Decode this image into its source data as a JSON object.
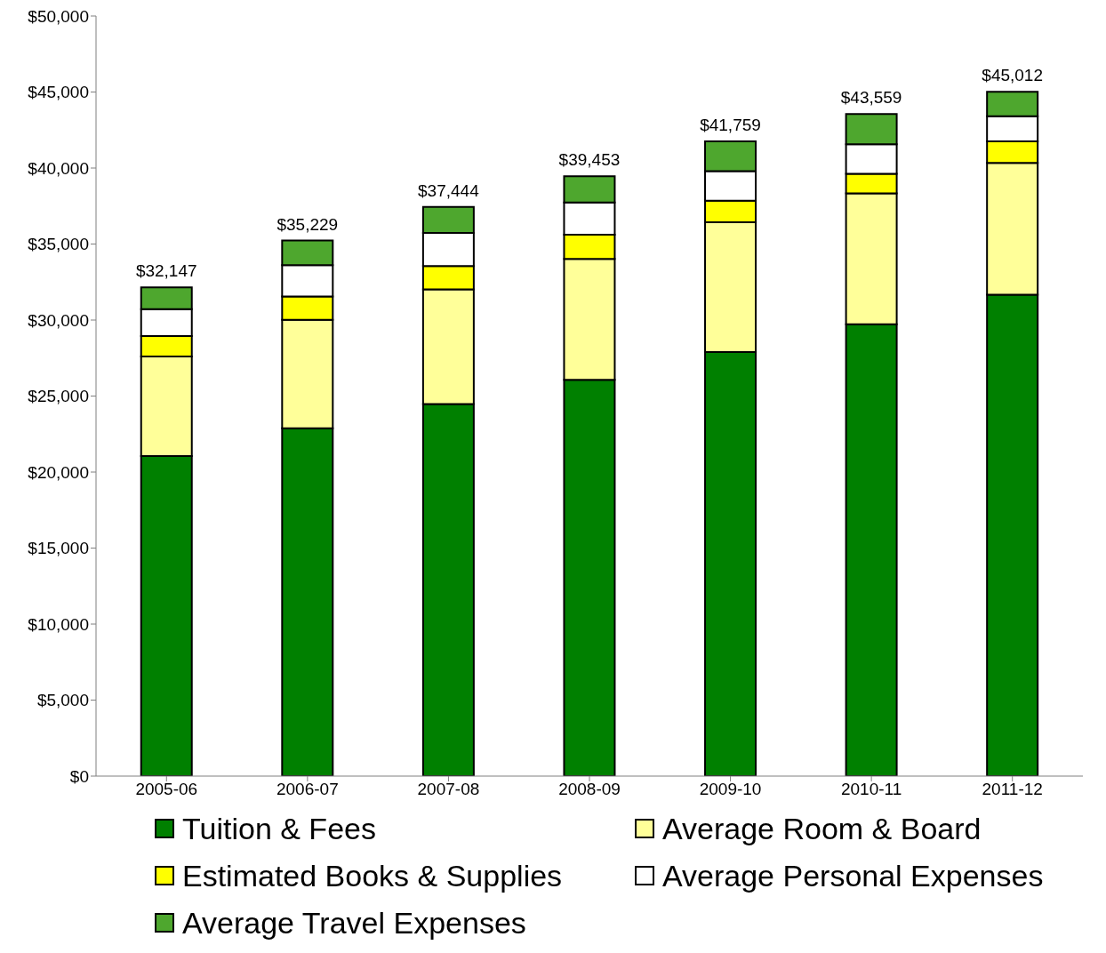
{
  "chart_data": {
    "type": "bar",
    "stacked": true,
    "categories": [
      "2005-06",
      "2006-07",
      "2007-08",
      "2008-09",
      "2009-10",
      "2010-11",
      "2011-12"
    ],
    "series": [
      {
        "name": "Tuition & Fees",
        "color": "#008000",
        "values": [
          21050,
          22880,
          24470,
          26060,
          27890,
          29720,
          31660
        ]
      },
      {
        "name": "Average Room & Board",
        "color": "#ffff99",
        "values": [
          6550,
          7130,
          7550,
          7960,
          8550,
          8610,
          8670
        ]
      },
      {
        "name": "Estimated Books & Supplies",
        "color": "#ffff00",
        "values": [
          1350,
          1540,
          1530,
          1590,
          1410,
          1290,
          1420
        ]
      },
      {
        "name": "Average Personal Expenses",
        "color": "#ffffff",
        "values": [
          1770,
          2060,
          2180,
          2130,
          1950,
          1950,
          1650
        ]
      },
      {
        "name": "Average Travel Expenses",
        "color": "#4ea72e",
        "values": [
          1427,
          1619,
          1714,
          1713,
          1959,
          1989,
          1612
        ]
      }
    ],
    "totals": [
      "$32,147",
      "$35,229",
      "$37,444",
      "$39,453",
      "$41,759",
      "$43,559",
      "$45,012"
    ],
    "ylim": [
      0,
      50000
    ],
    "yticks": [
      {
        "value": 0,
        "label": "$0"
      },
      {
        "value": 5000,
        "label": "$5,000"
      },
      {
        "value": 10000,
        "label": "$10,000"
      },
      {
        "value": 15000,
        "label": "$15,000"
      },
      {
        "value": 20000,
        "label": "$20,000"
      },
      {
        "value": 25000,
        "label": "$25,000"
      },
      {
        "value": 30000,
        "label": "$30,000"
      },
      {
        "value": 35000,
        "label": "$35,000"
      },
      {
        "value": 40000,
        "label": "$40,000"
      },
      {
        "value": 45000,
        "label": "$45,000"
      },
      {
        "value": 50000,
        "label": "$50,000"
      }
    ],
    "grid": false,
    "legend": "bottom"
  }
}
